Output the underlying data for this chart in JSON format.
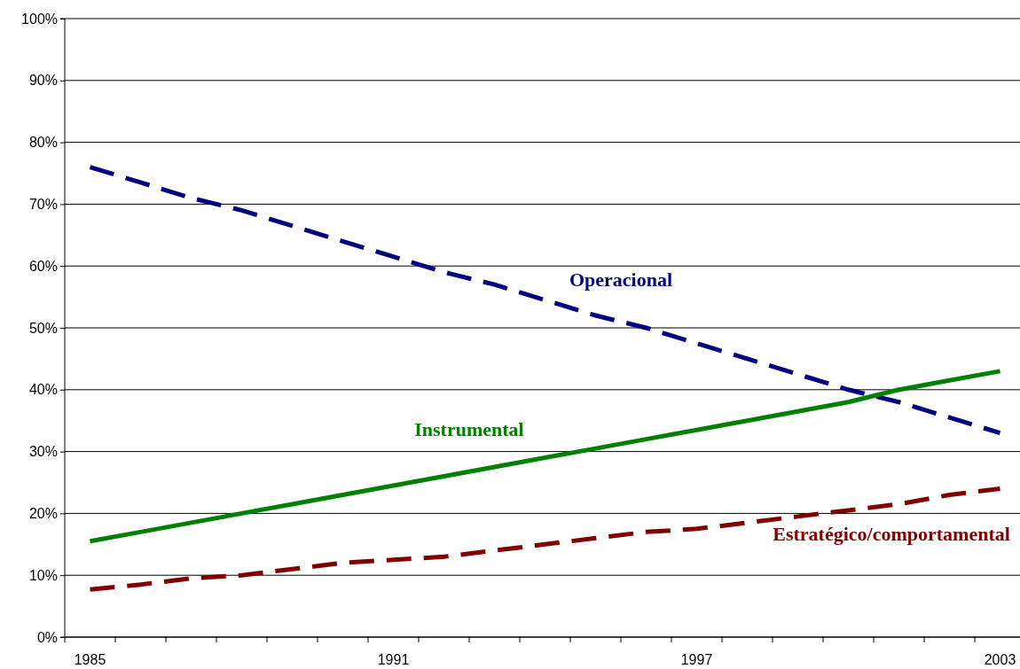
{
  "chart_data": {
    "type": "line",
    "categories": [
      "1985",
      null,
      null,
      null,
      null,
      null,
      "1991",
      null,
      null,
      null,
      null,
      null,
      "1997",
      null,
      null,
      null,
      null,
      null,
      "2003"
    ],
    "series": [
      {
        "name": "Operacional",
        "color": "#000080",
        "line_style": "dashed",
        "values": [
          76,
          73.5,
          71,
          69,
          66.5,
          64,
          61.5,
          59,
          57,
          54.5,
          52,
          50,
          47.5,
          45,
          42.5,
          40,
          38,
          35.5,
          33
        ]
      },
      {
        "name": "Instrumental",
        "color": "#008000",
        "line_style": "solid",
        "values": [
          15.5,
          17,
          18.5,
          20,
          21.5,
          23,
          24.5,
          26,
          27.5,
          29,
          30.5,
          32,
          33.5,
          35,
          36.5,
          38,
          40,
          41.5,
          43
        ]
      },
      {
        "name": "Estratégico/comportamental",
        "color": "#800000",
        "line_style": "dashed",
        "values": [
          7.7,
          8.5,
          9.5,
          10,
          11,
          12,
          12.5,
          13,
          14,
          15,
          16,
          17,
          17.5,
          18.5,
          19.5,
          20.5,
          21.5,
          23,
          24
        ]
      }
    ],
    "ylim": [
      0,
      100
    ],
    "yticks": [
      {
        "value": 0,
        "label": "0%"
      },
      {
        "value": 10,
        "label": "10%"
      },
      {
        "value": 20,
        "label": "20%"
      },
      {
        "value": 30,
        "label": "30%"
      },
      {
        "value": 40,
        "label": "40%"
      },
      {
        "value": 50,
        "label": "50%"
      },
      {
        "value": 60,
        "label": "60%"
      },
      {
        "value": 70,
        "label": "70%"
      },
      {
        "value": 80,
        "label": "80%"
      },
      {
        "value": 90,
        "label": "90%"
      },
      {
        "value": 100,
        "label": "100%"
      }
    ],
    "grid": "y"
  }
}
